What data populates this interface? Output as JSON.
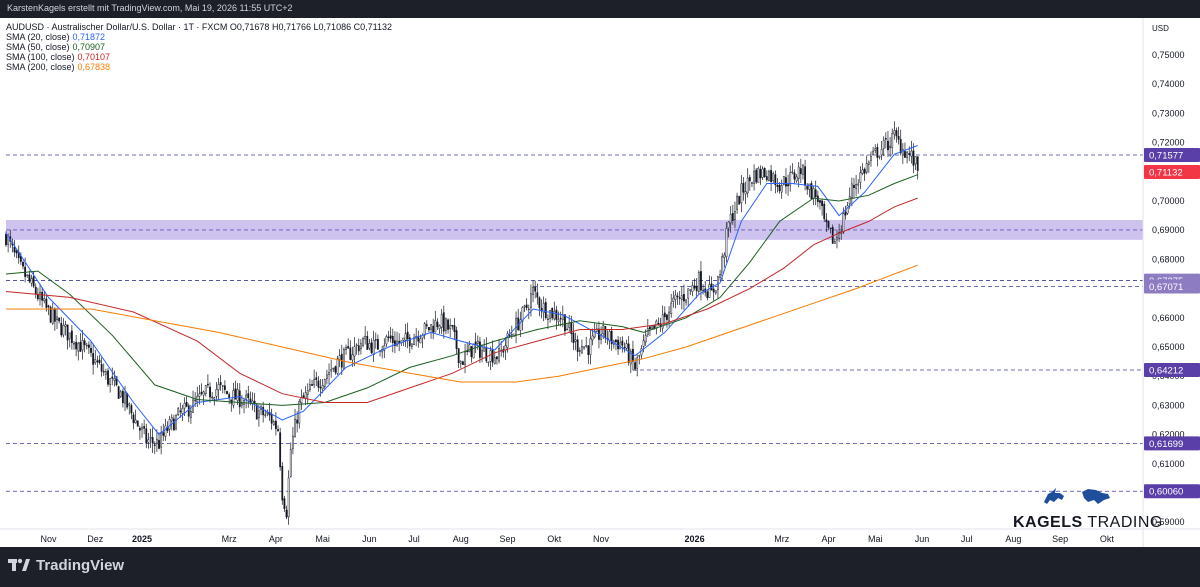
{
  "header": {
    "attribution": "KarstenKagels erstellt mit TradingView.com, Mai 19, 2026 11:55 UTC+2"
  },
  "legend": {
    "symbol_line": "AUDUSD · Australischer Dollar/U.S. Dollar · 1T · FXCM",
    "ohlc": [
      {
        "key": "O",
        "value": "0,71678"
      },
      {
        "key": "H",
        "value": "0,71766"
      },
      {
        "key": "L",
        "value": "0,71086"
      },
      {
        "key": "C",
        "value": "0,71132"
      }
    ],
    "indicators": [
      {
        "label": "SMA (20, close)",
        "value": "0,71872",
        "color": "#2962ff"
      },
      {
        "label": "SMA (50, close)",
        "value": "0,70907",
        "color": "#1b5e20"
      },
      {
        "label": "SMA (100, close)",
        "value": "0,70107",
        "color": "#c62828"
      },
      {
        "label": "SMA (200, close)",
        "value": "0,67838",
        "color": "#f57c00"
      }
    ]
  },
  "footer": {
    "platform": "TradingView"
  },
  "watermark": {
    "brand_bold": "KAGELS",
    "brand_rest": " TRADING"
  },
  "chart_data": {
    "type": "candlestick",
    "currency": "USD",
    "ylim": [
      0.588,
      0.762
    ],
    "y_ticks": [
      "0,75000",
      "0,74000",
      "0,73000",
      "0,72000",
      "0,71000",
      "0,70000",
      "0,69000",
      "0,68000",
      "0,67000",
      "0,66000",
      "0,65000",
      "0,64000",
      "0,63000",
      "0,62000",
      "0,61000",
      "0,60000",
      "0,59000"
    ],
    "y_tick_values": [
      0.75,
      0.74,
      0.73,
      0.72,
      0.71,
      0.7,
      0.69,
      0.68,
      0.67,
      0.66,
      0.65,
      0.64,
      0.63,
      0.62,
      0.61,
      0.6,
      0.59
    ],
    "x_ticks": [
      {
        "label": "Nov",
        "t": 20,
        "bold": false
      },
      {
        "label": "Dez",
        "t": 42,
        "bold": false
      },
      {
        "label": "2025",
        "t": 64,
        "bold": true
      },
      {
        "label": "Mrz",
        "t": 105,
        "bold": false
      },
      {
        "label": "Apr",
        "t": 127,
        "bold": false
      },
      {
        "label": "Mai",
        "t": 149,
        "bold": false
      },
      {
        "label": "Jun",
        "t": 171,
        "bold": false
      },
      {
        "label": "Jul",
        "t": 192,
        "bold": false
      },
      {
        "label": "Aug",
        "t": 214,
        "bold": false
      },
      {
        "label": "Sep",
        "t": 236,
        "bold": false
      },
      {
        "label": "Okt",
        "t": 258,
        "bold": false
      },
      {
        "label": "Nov",
        "t": 280,
        "bold": false
      },
      {
        "label": "2026",
        "t": 324,
        "bold": true
      },
      {
        "label": "Mrz",
        "t": 365,
        "bold": false
      },
      {
        "label": "Apr",
        "t": 387,
        "bold": false
      },
      {
        "label": "Mai",
        "t": 409,
        "bold": false
      },
      {
        "label": "Jun",
        "t": 431,
        "bold": false
      },
      {
        "label": "Jul",
        "t": 452,
        "bold": false
      },
      {
        "label": "Aug",
        "t": 474,
        "bold": false
      },
      {
        "label": "Sep",
        "t": 496,
        "bold": false
      },
      {
        "label": "Okt",
        "t": 518,
        "bold": false
      }
    ],
    "t_range": [
      0,
      535
    ],
    "zone": [
      0.6867,
      0.6935
    ],
    "levels": [
      {
        "label": "0,71577",
        "value": 0.71577,
        "color": "#5a3fa8",
        "from_t": 0
      },
      {
        "label": "0,67275",
        "value": 0.67275,
        "color": "#8e7cc3",
        "from_t": 0
      },
      {
        "label": "0,67071",
        "value": 0.67071,
        "color": "#8e7cc3",
        "from_t": 248
      },
      {
        "label": "0,64212",
        "value": 0.64212,
        "color": "#5a3fa8",
        "from_t": 295
      },
      {
        "label": "0,61699",
        "value": 0.61699,
        "color": "#5a3fa8",
        "from_t": 0
      },
      {
        "label": "0,60060",
        "value": 0.6006,
        "color": "#5a3fa8",
        "from_t": 0
      }
    ],
    "last_price": {
      "label": "0,71132",
      "value": 0.71132,
      "color": "#f23645"
    },
    "anchors": [
      [
        0,
        0.688
      ],
      [
        6,
        0.678
      ],
      [
        12,
        0.671
      ],
      [
        18,
        0.664
      ],
      [
        24,
        0.658
      ],
      [
        30,
        0.654
      ],
      [
        36,
        0.65
      ],
      [
        42,
        0.645
      ],
      [
        48,
        0.639
      ],
      [
        54,
        0.634
      ],
      [
        60,
        0.626
      ],
      [
        66,
        0.618
      ],
      [
        72,
        0.617
      ],
      [
        76,
        0.622
      ],
      [
        82,
        0.627
      ],
      [
        88,
        0.63
      ],
      [
        94,
        0.634
      ],
      [
        100,
        0.636
      ],
      [
        106,
        0.633
      ],
      [
        112,
        0.632
      ],
      [
        118,
        0.628
      ],
      [
        124,
        0.626
      ],
      [
        128,
        0.622
      ],
      [
        130,
        0.6
      ],
      [
        132,
        0.594
      ],
      [
        134,
        0.615
      ],
      [
        138,
        0.63
      ],
      [
        144,
        0.636
      ],
      [
        150,
        0.64
      ],
      [
        156,
        0.645
      ],
      [
        162,
        0.648
      ],
      [
        168,
        0.652
      ],
      [
        174,
        0.65
      ],
      [
        180,
        0.653
      ],
      [
        186,
        0.651
      ],
      [
        192,
        0.654
      ],
      [
        198,
        0.656
      ],
      [
        204,
        0.659
      ],
      [
        210,
        0.655
      ],
      [
        214,
        0.645
      ],
      [
        220,
        0.65
      ],
      [
        226,
        0.648
      ],
      [
        232,
        0.647
      ],
      [
        238,
        0.655
      ],
      [
        244,
        0.662
      ],
      [
        248,
        0.669
      ],
      [
        252,
        0.664
      ],
      [
        256,
        0.662
      ],
      [
        262,
        0.66
      ],
      [
        268,
        0.651
      ],
      [
        274,
        0.65
      ],
      [
        280,
        0.655
      ],
      [
        286,
        0.652
      ],
      [
        290,
        0.651
      ],
      [
        296,
        0.643
      ],
      [
        302,
        0.654
      ],
      [
        308,
        0.658
      ],
      [
        314,
        0.665
      ],
      [
        320,
        0.668
      ],
      [
        326,
        0.673
      ],
      [
        332,
        0.668
      ],
      [
        336,
        0.675
      ],
      [
        340,
        0.692
      ],
      [
        346,
        0.703
      ],
      [
        352,
        0.709
      ],
      [
        358,
        0.71
      ],
      [
        364,
        0.706
      ],
      [
        370,
        0.708
      ],
      [
        374,
        0.711
      ],
      [
        378,
        0.704
      ],
      [
        382,
        0.701
      ],
      [
        386,
        0.69
      ],
      [
        390,
        0.686
      ],
      [
        394,
        0.694
      ],
      [
        398,
        0.704
      ],
      [
        402,
        0.709
      ],
      [
        406,
        0.713
      ],
      [
        410,
        0.717
      ],
      [
        414,
        0.719
      ],
      [
        418,
        0.722
      ],
      [
        422,
        0.718
      ],
      [
        426,
        0.715
      ],
      [
        429,
        0.711
      ]
    ],
    "candle_count": 430,
    "sma_series": [
      {
        "name": "SMA 20",
        "color": "#2962ff",
        "points": [
          [
            0,
            0.689
          ],
          [
            20,
            0.667
          ],
          [
            40,
            0.652
          ],
          [
            60,
            0.631
          ],
          [
            72,
            0.62
          ],
          [
            90,
            0.631
          ],
          [
            110,
            0.633
          ],
          [
            130,
            0.625
          ],
          [
            140,
            0.628
          ],
          [
            160,
            0.643
          ],
          [
            180,
            0.65
          ],
          [
            200,
            0.655
          ],
          [
            214,
            0.652
          ],
          [
            230,
            0.649
          ],
          [
            248,
            0.663
          ],
          [
            262,
            0.661
          ],
          [
            280,
            0.654
          ],
          [
            296,
            0.647
          ],
          [
            310,
            0.655
          ],
          [
            326,
            0.668
          ],
          [
            336,
            0.672
          ],
          [
            346,
            0.693
          ],
          [
            358,
            0.706
          ],
          [
            370,
            0.706
          ],
          [
            382,
            0.705
          ],
          [
            392,
            0.695
          ],
          [
            404,
            0.703
          ],
          [
            418,
            0.716
          ],
          [
            429,
            0.719
          ]
        ]
      },
      {
        "name": "SMA 50",
        "color": "#1b5e20",
        "points": [
          [
            0,
            0.675
          ],
          [
            15,
            0.676
          ],
          [
            30,
            0.668
          ],
          [
            50,
            0.654
          ],
          [
            70,
            0.637
          ],
          [
            90,
            0.632
          ],
          [
            110,
            0.631
          ],
          [
            130,
            0.63
          ],
          [
            150,
            0.631
          ],
          [
            170,
            0.636
          ],
          [
            190,
            0.643
          ],
          [
            210,
            0.647
          ],
          [
            230,
            0.652
          ],
          [
            250,
            0.656
          ],
          [
            270,
            0.659
          ],
          [
            290,
            0.657
          ],
          [
            300,
            0.655
          ],
          [
            320,
            0.66
          ],
          [
            336,
            0.667
          ],
          [
            350,
            0.679
          ],
          [
            364,
            0.693
          ],
          [
            380,
            0.701
          ],
          [
            392,
            0.7
          ],
          [
            406,
            0.702
          ],
          [
            418,
            0.706
          ],
          [
            429,
            0.709
          ]
        ]
      },
      {
        "name": "SMA 100",
        "color": "#c62828",
        "points": [
          [
            0,
            0.669
          ],
          [
            30,
            0.667
          ],
          [
            60,
            0.662
          ],
          [
            90,
            0.652
          ],
          [
            110,
            0.641
          ],
          [
            130,
            0.634
          ],
          [
            150,
            0.631
          ],
          [
            170,
            0.631
          ],
          [
            190,
            0.636
          ],
          [
            210,
            0.641
          ],
          [
            230,
            0.648
          ],
          [
            250,
            0.652
          ],
          [
            270,
            0.656
          ],
          [
            290,
            0.656
          ],
          [
            310,
            0.658
          ],
          [
            330,
            0.663
          ],
          [
            350,
            0.67
          ],
          [
            366,
            0.677
          ],
          [
            380,
            0.685
          ],
          [
            392,
            0.689
          ],
          [
            406,
            0.693
          ],
          [
            418,
            0.698
          ],
          [
            429,
            0.701
          ]
        ]
      },
      {
        "name": "SMA 200",
        "color": "#f57c00",
        "points": [
          [
            0,
            0.663
          ],
          [
            40,
            0.663
          ],
          [
            70,
            0.659
          ],
          [
            100,
            0.655
          ],
          [
            130,
            0.65
          ],
          [
            160,
            0.645
          ],
          [
            190,
            0.641
          ],
          [
            214,
            0.638
          ],
          [
            240,
            0.638
          ],
          [
            260,
            0.64
          ],
          [
            280,
            0.643
          ],
          [
            300,
            0.646
          ],
          [
            320,
            0.65
          ],
          [
            340,
            0.655
          ],
          [
            360,
            0.66
          ],
          [
            380,
            0.665
          ],
          [
            400,
            0.67
          ],
          [
            418,
            0.675
          ],
          [
            429,
            0.678
          ]
        ]
      }
    ]
  }
}
